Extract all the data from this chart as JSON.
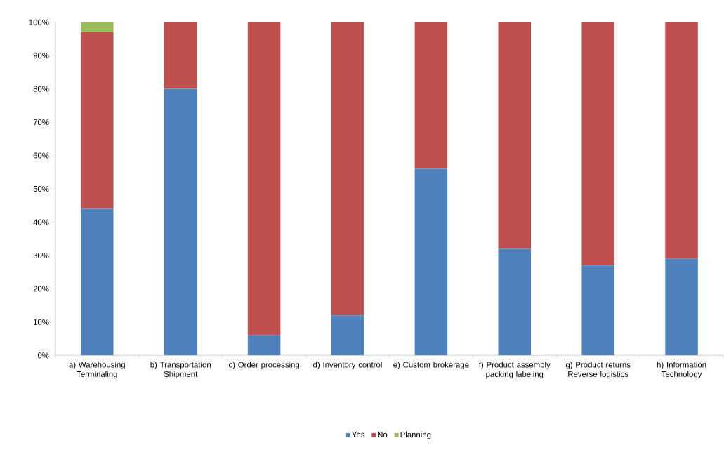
{
  "chart_data": {
    "type": "bar",
    "stacked": true,
    "categories": [
      "a) Warehousing Terminaling",
      "b) Transportation Shipment",
      "c) Order processing",
      "d) Inventory control",
      "e) Custom brokerage",
      "f) Product assembly packing labeling",
      "g) Product returns Reverse logistics",
      "h) Information Technology"
    ],
    "series": [
      {
        "name": "Yes",
        "color": "#4f81bd",
        "values": [
          44,
          80,
          6,
          12,
          56,
          32,
          27,
          29
        ]
      },
      {
        "name": "No",
        "color": "#c0504d",
        "values": [
          53,
          20,
          94,
          88,
          44,
          68,
          73,
          71
        ]
      },
      {
        "name": "Planning",
        "color": "#9bbb59",
        "values": [
          3,
          null,
          null,
          null,
          null,
          null,
          null,
          null
        ]
      }
    ],
    "ylim": [
      0,
      100
    ],
    "yticks": [
      {
        "value": 0,
        "label": "0%"
      },
      {
        "value": 10,
        "label": "10%"
      },
      {
        "value": 20,
        "label": "20%"
      },
      {
        "value": 30,
        "label": "30%"
      },
      {
        "value": 40,
        "label": "40%"
      },
      {
        "value": 50,
        "label": "50%"
      },
      {
        "value": 60,
        "label": "60%"
      },
      {
        "value": 70,
        "label": "70%"
      },
      {
        "value": 80,
        "label": "80%"
      },
      {
        "value": 90,
        "label": "90%"
      },
      {
        "value": 100,
        "label": "100%"
      }
    ],
    "legend": "bottom"
  }
}
